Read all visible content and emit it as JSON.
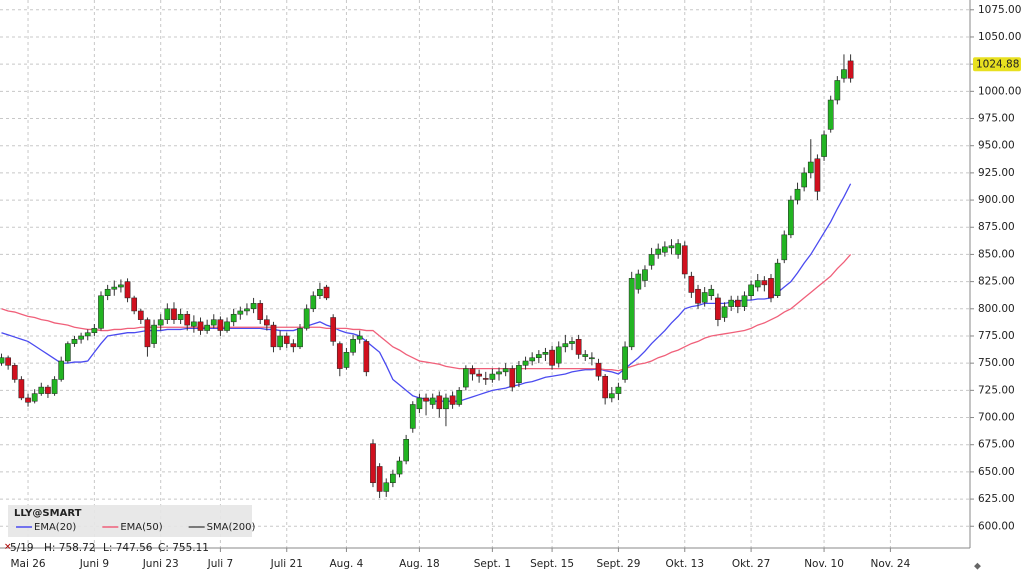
{
  "chart_data": {
    "type": "candlestick",
    "symbol": "LLY@SMART",
    "info": {
      "date": "5/19",
      "high": "H: 758.72",
      "low": "L: 747.56",
      "close": "C: 755.11"
    },
    "up_color": "#22b422",
    "down_color": "#d0101e",
    "grid": true,
    "ylim": [
      580,
      1084
    ],
    "yticks": [
      {
        "value": 600,
        "label": "600.00"
      },
      {
        "value": 625,
        "label": "625.00"
      },
      {
        "value": 650,
        "label": "650.00"
      },
      {
        "value": 675,
        "label": "675.00"
      },
      {
        "value": 700,
        "label": "700.00"
      },
      {
        "value": 725,
        "label": "725.00"
      },
      {
        "value": 750,
        "label": "750.00"
      },
      {
        "value": 775,
        "label": "775.00"
      },
      {
        "value": 800,
        "label": "800.00"
      },
      {
        "value": 825,
        "label": "825.00"
      },
      {
        "value": 850,
        "label": "850.00"
      },
      {
        "value": 875,
        "label": "875.00"
      },
      {
        "value": 900,
        "label": "900.00"
      },
      {
        "value": 925,
        "label": "925.00"
      },
      {
        "value": 950,
        "label": "950.00"
      },
      {
        "value": 975,
        "label": "975.00"
      },
      {
        "value": 1000,
        "label": "1000.00"
      },
      {
        "value": 1025,
        "label": "1025.00"
      },
      {
        "value": 1050,
        "label": "1050.00"
      },
      {
        "value": 1075,
        "label": "1075.00"
      }
    ],
    "last_price": 1024.88,
    "categories": [
      null,
      null,
      null,
      null,
      "Mai 26",
      null,
      null,
      null,
      null,
      null,
      null,
      null,
      null,
      null,
      "Juni 9",
      null,
      null,
      null,
      null,
      null,
      null,
      null,
      null,
      null,
      "Juni 23",
      null,
      null,
      null,
      null,
      null,
      null,
      null,
      null,
      "Juli 7",
      null,
      null,
      null,
      null,
      null,
      null,
      null,
      null,
      null,
      "Juli 21",
      null,
      null,
      null,
      null,
      null,
      null,
      null,
      null,
      "Aug. 4",
      null,
      null,
      null,
      null,
      null,
      null,
      null,
      null,
      null,
      null,
      "Aug. 18",
      null,
      null,
      null,
      null,
      null,
      null,
      null,
      null,
      null,
      null,
      "Sept. 1",
      null,
      null,
      null,
      null,
      null,
      null,
      null,
      null,
      "Sept. 15",
      null,
      null,
      null,
      null,
      null,
      null,
      null,
      null,
      null,
      "Sept. 29",
      null,
      null,
      null,
      null,
      null,
      null,
      null,
      null,
      null,
      "Okt. 13",
      null,
      null,
      null,
      null,
      null,
      null,
      null,
      null,
      null,
      "Okt. 27",
      null,
      null,
      null,
      null,
      null,
      null,
      null,
      null,
      null,
      null,
      "Nov. 10",
      null,
      null,
      null,
      null,
      null,
      null,
      null,
      null,
      null,
      "Nov. 24",
      null,
      null,
      null,
      null,
      null,
      null,
      null,
      null,
      null,
      null,
      null,
      null
    ],
    "ohlc": [
      [
        750,
        758.72,
        747.56,
        755.11
      ],
      [
        755,
        757,
        744,
        748
      ],
      [
        748,
        750,
        732,
        735
      ],
      [
        735,
        738,
        716,
        718
      ],
      [
        718,
        722,
        710,
        714
      ],
      [
        715,
        726,
        713,
        722
      ],
      [
        722,
        732,
        720,
        728
      ],
      [
        728,
        730,
        718,
        722
      ],
      [
        722,
        738,
        720,
        735
      ],
      [
        735,
        756,
        733,
        752
      ],
      [
        752,
        770,
        750,
        768
      ],
      [
        768,
        775,
        765,
        772
      ],
      [
        772,
        778,
        768,
        775
      ],
      [
        775,
        781,
        771,
        778
      ],
      [
        778,
        786,
        775,
        782
      ],
      [
        782,
        816,
        780,
        812
      ],
      [
        812,
        822,
        808,
        818
      ],
      [
        818,
        826,
        812,
        820
      ],
      [
        820,
        827,
        815,
        822
      ],
      [
        825,
        828,
        806,
        810
      ],
      [
        810,
        812,
        795,
        798
      ],
      [
        798,
        800,
        786,
        790
      ],
      [
        790,
        792,
        756,
        765
      ],
      [
        768,
        790,
        764,
        785
      ],
      [
        785,
        795,
        780,
        790
      ],
      [
        790,
        805,
        786,
        800
      ],
      [
        800,
        806,
        786,
        790
      ],
      [
        790,
        800,
        786,
        795
      ],
      [
        795,
        798,
        780,
        785
      ],
      [
        784,
        794,
        778,
        788
      ],
      [
        788,
        792,
        776,
        780
      ],
      [
        780,
        790,
        777,
        785
      ],
      [
        785,
        795,
        782,
        790
      ],
      [
        790,
        793,
        775,
        780
      ],
      [
        780,
        792,
        778,
        788
      ],
      [
        788,
        800,
        784,
        795
      ],
      [
        795,
        802,
        790,
        798
      ],
      [
        798,
        805,
        794,
        800
      ],
      [
        800,
        810,
        796,
        805
      ],
      [
        805,
        808,
        786,
        790
      ],
      [
        790,
        794,
        780,
        785
      ],
      [
        785,
        788,
        760,
        765
      ],
      [
        765,
        780,
        762,
        775
      ],
      [
        775,
        778,
        764,
        768
      ],
      [
        768,
        772,
        760,
        765
      ],
      [
        765,
        786,
        763,
        782
      ],
      [
        782,
        804,
        780,
        800
      ],
      [
        800,
        816,
        797,
        812
      ],
      [
        812,
        824,
        809,
        818
      ],
      [
        820,
        822,
        808,
        810
      ],
      [
        792,
        795,
        766,
        770
      ],
      [
        768,
        770,
        738,
        745
      ],
      [
        746,
        764,
        744,
        760
      ],
      [
        760,
        776,
        757,
        772
      ],
      [
        772,
        780,
        768,
        775
      ],
      [
        770,
        772,
        738,
        742
      ],
      [
        676,
        680,
        636,
        640
      ],
      [
        655,
        658,
        626,
        632
      ],
      [
        632,
        644,
        627,
        640
      ],
      [
        640,
        652,
        636,
        648
      ],
      [
        648,
        664,
        645,
        660
      ],
      [
        660,
        684,
        657,
        680
      ],
      [
        690,
        715,
        686,
        712
      ],
      [
        708,
        722,
        704,
        718
      ],
      [
        718,
        722,
        702,
        715
      ],
      [
        712,
        722,
        708,
        718
      ],
      [
        720,
        724,
        700,
        708
      ],
      [
        708,
        722,
        692,
        718
      ],
      [
        720,
        724,
        708,
        712
      ],
      [
        712,
        728,
        710,
        725
      ],
      [
        728,
        748,
        725,
        745
      ],
      [
        745,
        748,
        734,
        740
      ],
      [
        740,
        744,
        732,
        738
      ],
      [
        736,
        742,
        730,
        735
      ],
      [
        735,
        745,
        732,
        740
      ],
      [
        740,
        746,
        734,
        742
      ],
      [
        742,
        750,
        738,
        745
      ],
      [
        745,
        748,
        724,
        728
      ],
      [
        732,
        752,
        728,
        748
      ],
      [
        748,
        756,
        744,
        752
      ],
      [
        752,
        760,
        748,
        755
      ],
      [
        755,
        762,
        750,
        758
      ],
      [
        758,
        764,
        752,
        760
      ],
      [
        762,
        766,
        744,
        748
      ],
      [
        750,
        770,
        746,
        765
      ],
      [
        765,
        776,
        760,
        768
      ],
      [
        768,
        774,
        762,
        770
      ],
      [
        772,
        776,
        754,
        758
      ],
      [
        756,
        762,
        752,
        758
      ],
      [
        754,
        760,
        748,
        755
      ],
      [
        750,
        754,
        734,
        738
      ],
      [
        738,
        740,
        712,
        718
      ],
      [
        718,
        728,
        714,
        722
      ],
      [
        722,
        732,
        716,
        728
      ],
      [
        735,
        770,
        732,
        765
      ],
      [
        765,
        834,
        762,
        828
      ],
      [
        818,
        836,
        814,
        832
      ],
      [
        826,
        840,
        820,
        836
      ],
      [
        840,
        856,
        836,
        850
      ],
      [
        850,
        860,
        846,
        855
      ],
      [
        852,
        862,
        848,
        857
      ],
      [
        856,
        864,
        850,
        858
      ],
      [
        850,
        864,
        846,
        860
      ],
      [
        858,
        862,
        828,
        832
      ],
      [
        830,
        834,
        810,
        815
      ],
      [
        818,
        822,
        800,
        805
      ],
      [
        806,
        820,
        802,
        815
      ],
      [
        812,
        822,
        808,
        818
      ],
      [
        810,
        814,
        784,
        790
      ],
      [
        792,
        806,
        788,
        802
      ],
      [
        802,
        812,
        798,
        808
      ],
      [
        808,
        812,
        796,
        802
      ],
      [
        802,
        816,
        798,
        812
      ],
      [
        812,
        826,
        808,
        822
      ],
      [
        820,
        832,
        816,
        826
      ],
      [
        826,
        830,
        816,
        822
      ],
      [
        828,
        832,
        806,
        810
      ],
      [
        812,
        846,
        810,
        842
      ],
      [
        845,
        872,
        842,
        868
      ],
      [
        868,
        904,
        865,
        900
      ],
      [
        900,
        916,
        896,
        910
      ],
      [
        912,
        930,
        908,
        925
      ],
      [
        925,
        956,
        920,
        935
      ],
      [
        938,
        942,
        900,
        908
      ],
      [
        940,
        964,
        936,
        960
      ],
      [
        965,
        996,
        962,
        992
      ],
      [
        992,
        1014,
        988,
        1010
      ],
      [
        1012,
        1034,
        1008,
        1020
      ],
      [
        1028,
        1034,
        1008,
        1012
      ],
      null,
      null,
      null,
      null,
      null,
      null,
      null,
      null,
      null,
      null,
      null,
      null,
      null,
      null,
      null,
      null,
      null,
      null
    ],
    "series": [
      {
        "name": "EMA(20)",
        "color": "#4b4bf0",
        "values": [
          778,
          776,
          774,
          772,
          770,
          766,
          762,
          758,
          754,
          750,
          750,
          751,
          751,
          752,
          760,
          768,
          775,
          776,
          777,
          778,
          778,
          779,
          780,
          780,
          780,
          781,
          781,
          781,
          782,
          782,
          782,
          782,
          782,
          782,
          782,
          782,
          782,
          782,
          782,
          782,
          781,
          781,
          780,
          780,
          780,
          782,
          784,
          786,
          788,
          785,
          783,
          780,
          778,
          777,
          775,
          770,
          765,
          760,
          748,
          735,
          730,
          725,
          720,
          718,
          717,
          715,
          715,
          715,
          715,
          715,
          717,
          719,
          721,
          723,
          725,
          726,
          727,
          729,
          730,
          732,
          733,
          735,
          737,
          738,
          739,
          740,
          742,
          743,
          744,
          744,
          745,
          743,
          742,
          740,
          745,
          750,
          755,
          761,
          768,
          774,
          780,
          787,
          793,
          800,
          802,
          803,
          805,
          805,
          805,
          805,
          806,
          807,
          808,
          808,
          809,
          809,
          810,
          815,
          820,
          825,
          833,
          842,
          850,
          860,
          870,
          880,
          892,
          903,
          915,
          null,
          null,
          null,
          null,
          null,
          null,
          null,
          null,
          null,
          null,
          null,
          null,
          null,
          null,
          null,
          null,
          null,
          null
        ]
      },
      {
        "name": "EMA(50)",
        "color": "#f0607a",
        "values": [
          800,
          798,
          797,
          795,
          793,
          792,
          790,
          789,
          787,
          786,
          785,
          783,
          782,
          781,
          781,
          780,
          780,
          781,
          781,
          782,
          782,
          783,
          783,
          783,
          783,
          783,
          783,
          783,
          783,
          783,
          783,
          783,
          783,
          783,
          783,
          783,
          783,
          783,
          783,
          783,
          783,
          783,
          783,
          783,
          783,
          783,
          783,
          783,
          783,
          782,
          782,
          782,
          782,
          781,
          781,
          780,
          780,
          775,
          770,
          765,
          762,
          758,
          755,
          752,
          751,
          750,
          749,
          747,
          746,
          745,
          745,
          745,
          745,
          745,
          745,
          745,
          745,
          745,
          745,
          745,
          745,
          745,
          745,
          745,
          745,
          745,
          745,
          745,
          745,
          745,
          745,
          744,
          744,
          743,
          745,
          747,
          749,
          750,
          752,
          755,
          757,
          760,
          762,
          765,
          768,
          770,
          773,
          775,
          776,
          777,
          778,
          779,
          780,
          782,
          785,
          787,
          790,
          793,
          797,
          800,
          805,
          810,
          815,
          820,
          825,
          830,
          837,
          843,
          850,
          null,
          null,
          null,
          null,
          null,
          null,
          null,
          null,
          null,
          null,
          null,
          null,
          null,
          null,
          null,
          null,
          null,
          null
        ]
      },
      {
        "name": "SMA(200)",
        "color": "#555555"
      }
    ]
  }
}
